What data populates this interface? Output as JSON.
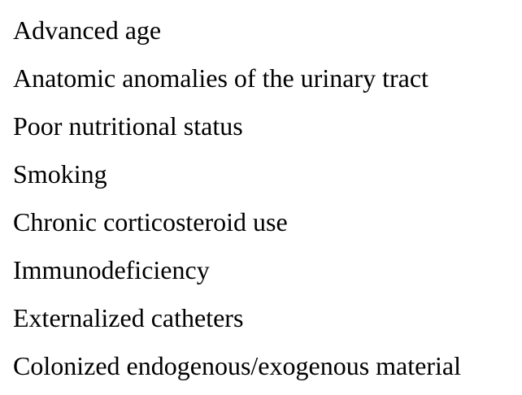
{
  "items": [
    "Advanced age",
    "Anatomic anomalies of the urinary tract",
    "Poor nutritional status",
    "Smoking",
    "Chronic corticosteroid use",
    "Immunodeficiency",
    "Externalized catheters",
    "Colonized endogenous/exogenous material"
  ]
}
